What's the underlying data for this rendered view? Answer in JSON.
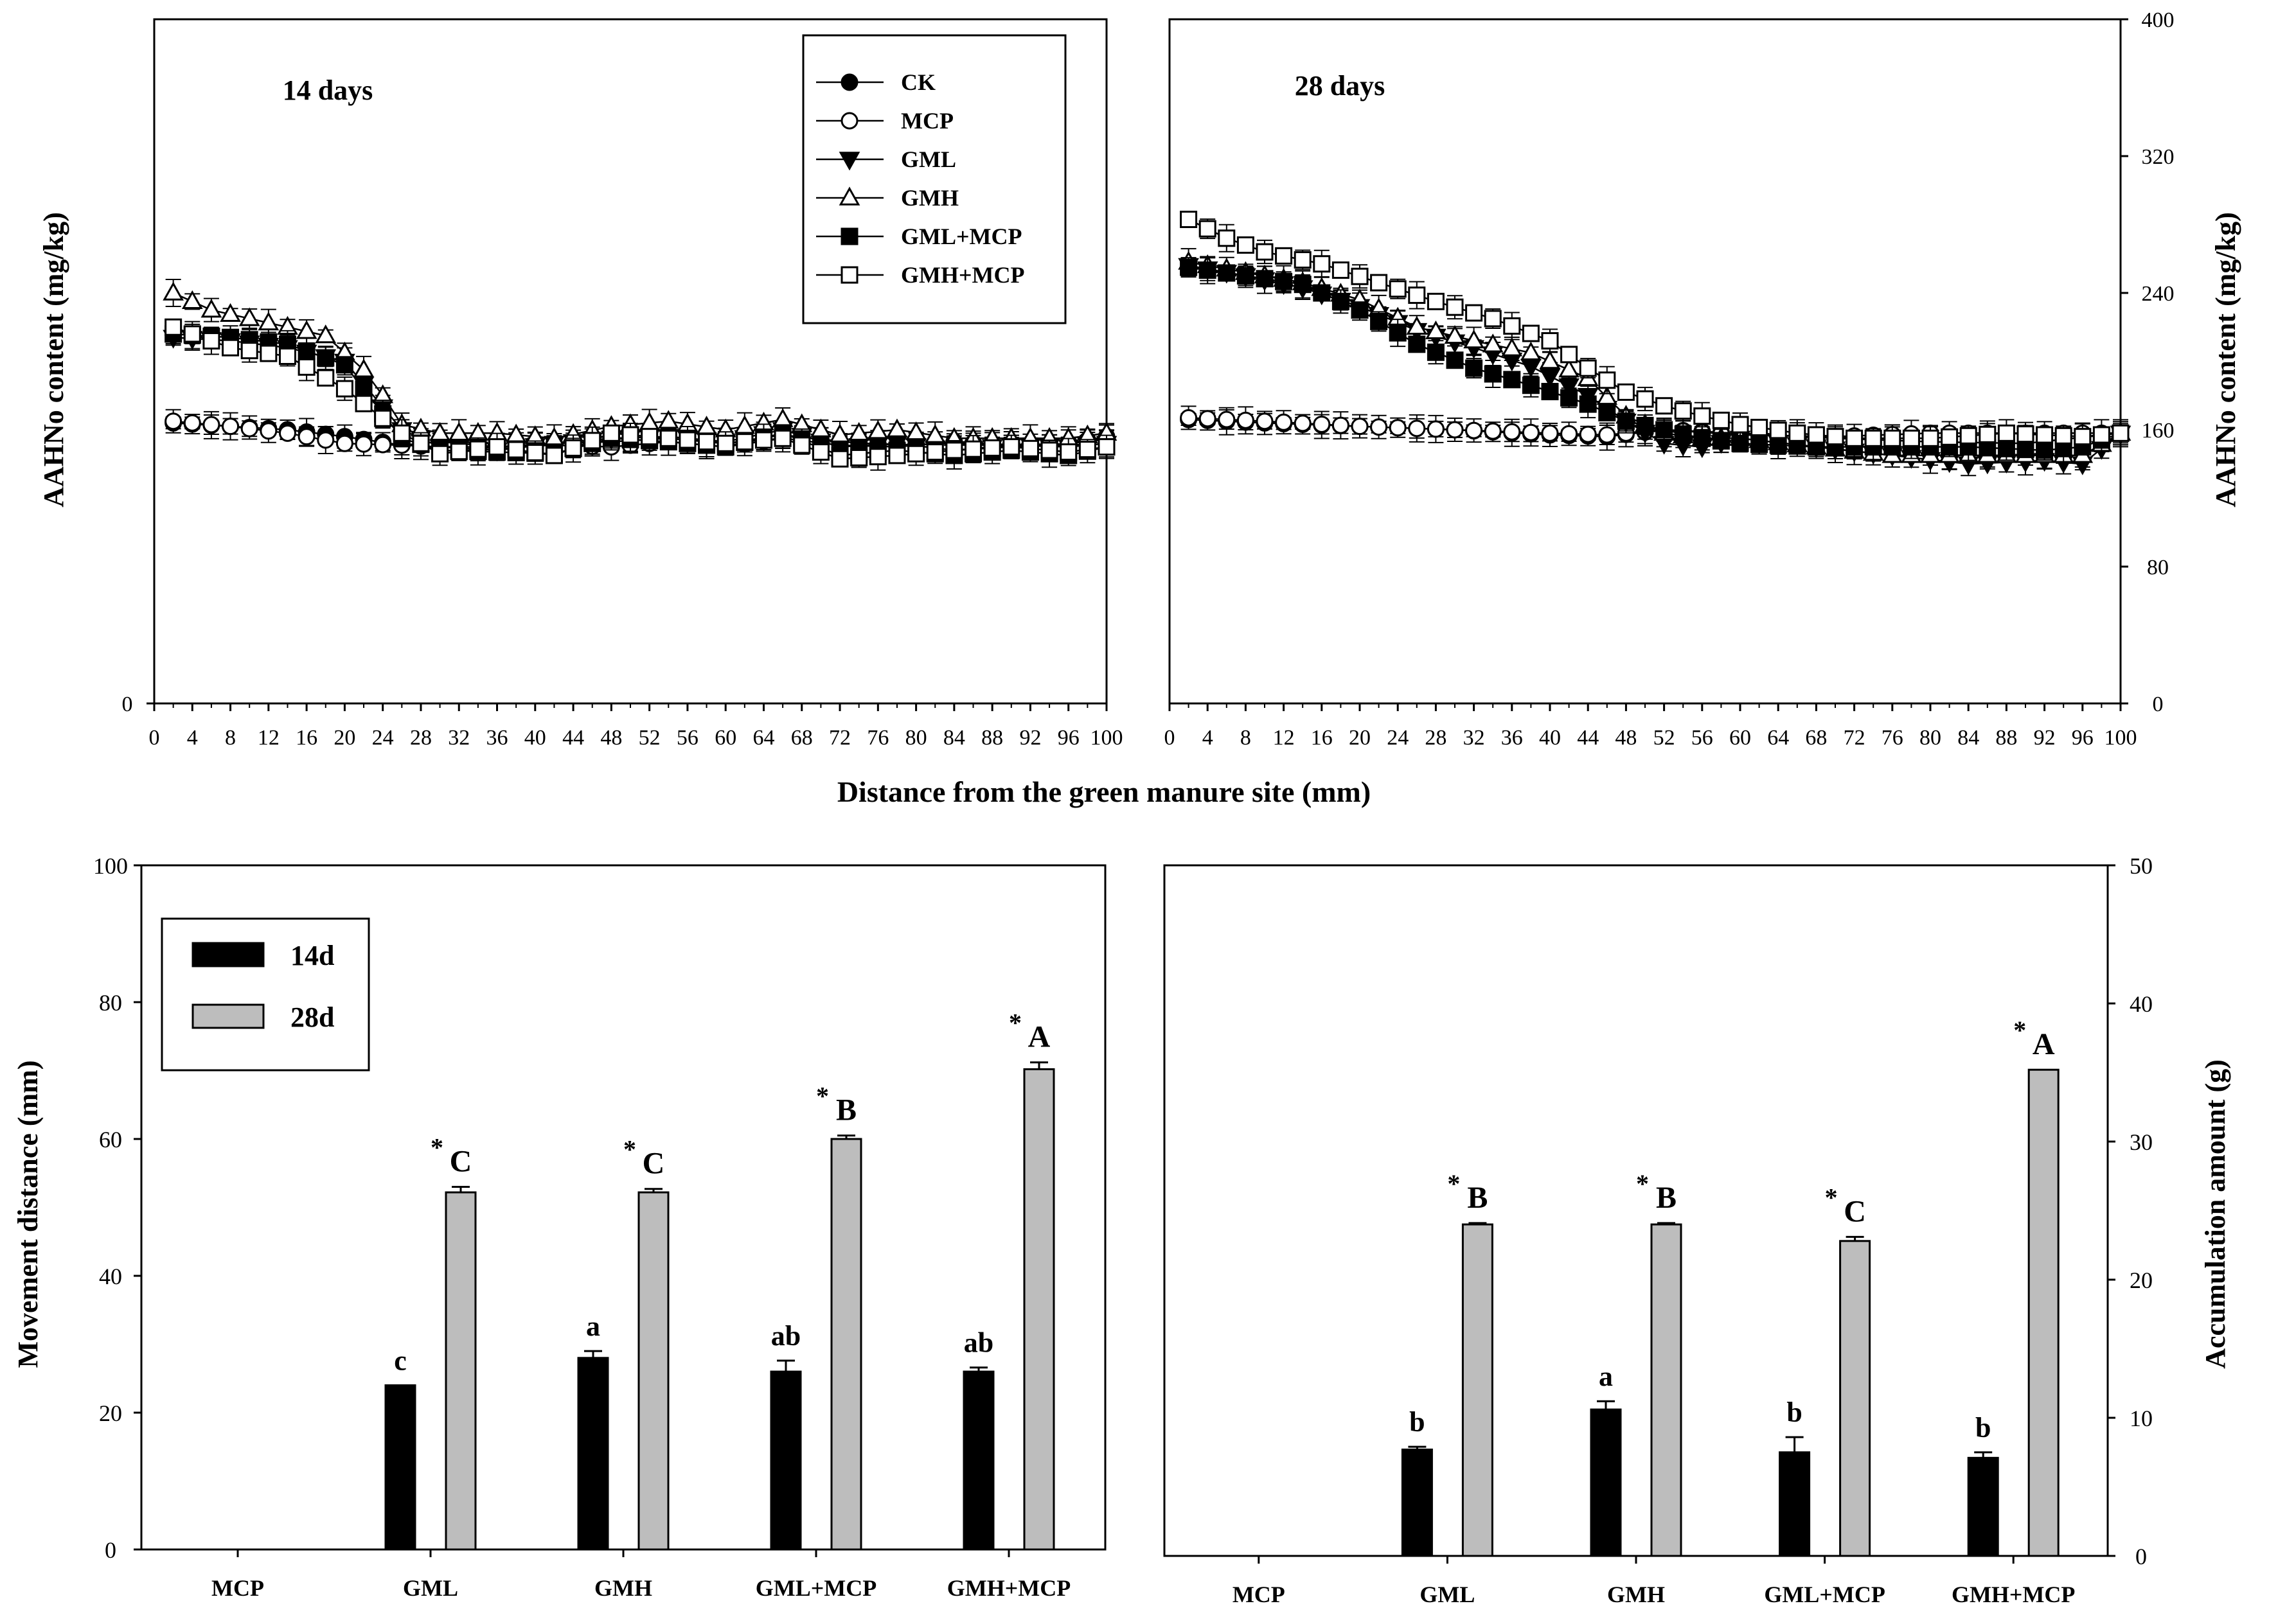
{
  "chart_data": [
    {
      "id": "p1",
      "type": "line",
      "title": "14 days",
      "xlabel": "Distance from the green manure site (mm)",
      "ylabel": "AAHNo content (mg/kg)",
      "xlim": [
        0,
        100
      ],
      "ylim": [
        0,
        400
      ],
      "x_ticks": [
        "0",
        "4",
        "8",
        "12",
        "16",
        "20",
        "24",
        "28",
        "32",
        "36",
        "40",
        "44",
        "48",
        "52",
        "56",
        "60",
        "64",
        "68",
        "72",
        "76",
        "80",
        "84",
        "88",
        "92",
        "96",
        "100"
      ],
      "y_ticks": [
        "0"
      ],
      "legend": [
        "CK",
        "MCP",
        "GML",
        "GMH",
        "GML+MCP",
        "GMH+MCP"
      ],
      "legend_position": "top-right",
      "series": [
        {
          "name": "CK",
          "x": [
            2,
            8,
            14,
            20,
            26,
            30,
            36,
            42,
            48,
            54,
            60,
            66,
            72,
            78,
            84,
            90,
            96,
            100
          ],
          "y": [
            164,
            162,
            160,
            156,
            151,
            153,
            150,
            152,
            153,
            155,
            152,
            157,
            153,
            151,
            152,
            150,
            152,
            156
          ]
        },
        {
          "name": "MCP",
          "x": [
            2,
            8,
            14,
            20,
            26,
            30,
            36,
            42,
            48,
            54,
            60,
            66,
            72,
            78,
            84,
            90,
            96,
            100
          ],
          "y": [
            165,
            162,
            158,
            152,
            151,
            150,
            150,
            151,
            150,
            153,
            150,
            155,
            151,
            150,
            153,
            151,
            150,
            155
          ]
        },
        {
          "name": "GML",
          "x": [
            2,
            8,
            14,
            20,
            26,
            30,
            36,
            42,
            48,
            54,
            60,
            66,
            72,
            78,
            84,
            90,
            96,
            100
          ],
          "y": [
            214,
            212,
            208,
            200,
            160,
            150,
            148,
            152,
            155,
            156,
            153,
            160,
            150,
            152,
            148,
            151,
            150,
            152
          ]
        },
        {
          "name": "GMH",
          "x": [
            2,
            6,
            10,
            14,
            18,
            20,
            22,
            24,
            26,
            30,
            36,
            42,
            48,
            54,
            60,
            66,
            72,
            78,
            84,
            90,
            96,
            100
          ],
          "y": [
            240,
            230,
            225,
            220,
            215,
            205,
            195,
            180,
            163,
            158,
            158,
            155,
            162,
            165,
            160,
            166,
            157,
            160,
            155,
            155,
            155,
            158
          ]
        },
        {
          "name": "GML+MCP",
          "x": [
            2,
            8,
            14,
            20,
            26,
            30,
            36,
            42,
            48,
            54,
            60,
            66,
            72,
            78,
            84,
            90,
            96,
            100
          ],
          "y": [
            216,
            214,
            210,
            198,
            155,
            148,
            147,
            146,
            155,
            153,
            150,
            158,
            145,
            148,
            145,
            148,
            145,
            150
          ]
        },
        {
          "name": "GMH+MCP",
          "x": [
            2,
            8,
            14,
            20,
            26,
            30,
            36,
            42,
            48,
            54,
            60,
            66,
            72,
            78,
            84,
            90,
            96,
            100
          ],
          "y": [
            220,
            208,
            203,
            184,
            158,
            146,
            150,
            145,
            158,
            155,
            152,
            155,
            143,
            145,
            148,
            150,
            147,
            150
          ]
        }
      ]
    },
    {
      "id": "p2",
      "type": "line",
      "title": "28 days",
      "xlabel": "Distance from the green manure site (mm)",
      "ylabel": "AAHNo content (mg/kg)",
      "xlim": [
        0,
        100
      ],
      "ylim": [
        0,
        400
      ],
      "x_ticks": [
        "0",
        "4",
        "8",
        "12",
        "16",
        "20",
        "24",
        "28",
        "32",
        "36",
        "40",
        "44",
        "48",
        "52",
        "56",
        "60",
        "64",
        "68",
        "72",
        "76",
        "80",
        "84",
        "88",
        "92",
        "96",
        "100"
      ],
      "y_ticks": [
        "0",
        "80",
        "160",
        "240",
        "320",
        "400"
      ],
      "series": [
        {
          "name": "CK",
          "x": [
            2,
            10,
            20,
            30,
            40,
            46,
            52,
            60,
            70,
            80,
            90,
            100
          ],
          "y": [
            166,
            164,
            162,
            160,
            157,
            156,
            160,
            158,
            155,
            153,
            152,
            158
          ]
        },
        {
          "name": "MCP",
          "x": [
            2,
            10,
            20,
            30,
            40,
            46,
            52,
            60,
            70,
            80,
            90,
            100
          ],
          "y": [
            167,
            165,
            162,
            160,
            158,
            157,
            160,
            157,
            156,
            158,
            158,
            158
          ]
        },
        {
          "name": "GML",
          "x": [
            2,
            8,
            14,
            20,
            26,
            32,
            38,
            44,
            48,
            52,
            56,
            60,
            68,
            76,
            84,
            92,
            96,
            100
          ],
          "y": [
            256,
            250,
            243,
            232,
            218,
            208,
            197,
            180,
            165,
            152,
            150,
            155,
            150,
            145,
            140,
            142,
            140,
            158
          ]
        },
        {
          "name": "GMH",
          "x": [
            2,
            8,
            14,
            20,
            26,
            32,
            38,
            44,
            48,
            52,
            56,
            60,
            68,
            76,
            84,
            92,
            96,
            100
          ],
          "y": [
            258,
            252,
            246,
            236,
            220,
            212,
            205,
            190,
            168,
            158,
            155,
            155,
            150,
            145,
            145,
            145,
            145,
            158
          ]
        },
        {
          "name": "GML+MCP",
          "x": [
            2,
            8,
            14,
            20,
            26,
            32,
            38,
            44,
            48,
            52,
            56,
            60,
            68,
            76,
            84,
            92,
            96,
            100
          ],
          "y": [
            255,
            250,
            245,
            230,
            210,
            196,
            186,
            175,
            165,
            160,
            155,
            152,
            150,
            150,
            150,
            148,
            150,
            158
          ]
        },
        {
          "name": "GMH+MCP",
          "x": [
            2,
            6,
            10,
            16,
            22,
            28,
            34,
            40,
            44,
            48,
            52,
            56,
            60,
            66,
            72,
            80,
            88,
            96,
            100
          ],
          "y": [
            283,
            272,
            264,
            257,
            246,
            235,
            225,
            212,
            196,
            182,
            174,
            168,
            163,
            158,
            155,
            155,
            158,
            156,
            158
          ]
        }
      ]
    },
    {
      "id": "p3",
      "type": "bar",
      "categories": [
        "MCP",
        "GML",
        "GMH",
        "GML+MCP",
        "GMH+MCP"
      ],
      "ylabel": "Movement distance (mm)",
      "ylim": [
        0,
        100
      ],
      "y_ticks": [
        "0",
        "20",
        "40",
        "60",
        "80",
        "100"
      ],
      "legend": [
        "14d",
        "28d"
      ],
      "series": [
        {
          "name": "14d",
          "values": [
            0,
            24,
            28,
            26,
            26
          ],
          "errors": [
            0,
            0,
            1,
            1.6,
            0.6
          ],
          "labels": [
            "",
            "c",
            "a",
            "ab",
            "ab"
          ]
        },
        {
          "name": "28d",
          "values": [
            0,
            52.2,
            52.2,
            60,
            70.2
          ],
          "errors": [
            0,
            0.8,
            0.5,
            0.5,
            1
          ],
          "labels": [
            "",
            "C",
            "C",
            "B",
            "A"
          ],
          "marks": [
            "",
            "*",
            "*",
            "*",
            "*"
          ]
        }
      ]
    },
    {
      "id": "p4",
      "type": "bar",
      "categories": [
        "MCP",
        "GML",
        "GMH",
        "GML+MCP",
        "GMH+MCP"
      ],
      "ylabel": "Accumulation amount (g)",
      "ylim": [
        0,
        50
      ],
      "y_ticks": [
        "0",
        "10",
        "20",
        "30",
        "40",
        "50"
      ],
      "series": [
        {
          "name": "14d",
          "values": [
            0,
            7.7,
            10.6,
            7.5,
            7.1
          ],
          "errors": [
            0,
            0.2,
            0.6,
            1.1,
            0.4
          ],
          "labels": [
            "",
            "b",
            "a",
            "b",
            "b"
          ]
        },
        {
          "name": "28d",
          "values": [
            0,
            24,
            24,
            22.8,
            35.2
          ],
          "errors": [
            0,
            0.1,
            0.1,
            0.3,
            0
          ],
          "labels": [
            "",
            "B",
            "B",
            "C",
            "A"
          ],
          "marks": [
            "",
            "*",
            "*",
            "*",
            "*"
          ]
        }
      ]
    }
  ]
}
